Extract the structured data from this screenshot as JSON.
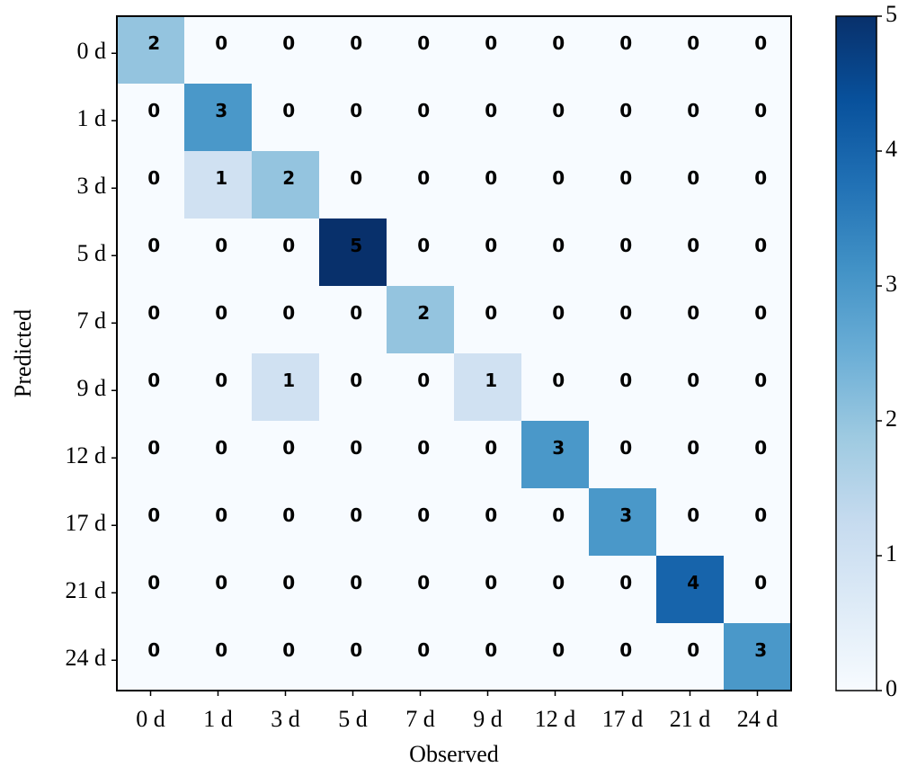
{
  "chart_data": {
    "type": "heatmap",
    "x_label": "Observed",
    "y_label": "Predicted",
    "x_categories": [
      "0 d",
      "1 d",
      "3 d",
      "5 d",
      "7 d",
      "9 d",
      "12 d",
      "17 d",
      "21 d",
      "24 d"
    ],
    "y_categories": [
      "0 d",
      "1 d",
      "3 d",
      "5 d",
      "7 d",
      "9 d",
      "12 d",
      "17 d",
      "21 d",
      "24 d"
    ],
    "values": [
      [
        2,
        0,
        0,
        0,
        0,
        0,
        0,
        0,
        0,
        0
      ],
      [
        0,
        3,
        0,
        0,
        0,
        0,
        0,
        0,
        0,
        0
      ],
      [
        0,
        1,
        2,
        0,
        0,
        0,
        0,
        0,
        0,
        0
      ],
      [
        0,
        0,
        0,
        5,
        0,
        0,
        0,
        0,
        0,
        0
      ],
      [
        0,
        0,
        0,
        0,
        2,
        0,
        0,
        0,
        0,
        0
      ],
      [
        0,
        0,
        1,
        0,
        0,
        1,
        0,
        0,
        0,
        0
      ],
      [
        0,
        0,
        0,
        0,
        0,
        0,
        3,
        0,
        0,
        0
      ],
      [
        0,
        0,
        0,
        0,
        0,
        0,
        0,
        3,
        0,
        0
      ],
      [
        0,
        0,
        0,
        0,
        0,
        0,
        0,
        0,
        4,
        0
      ],
      [
        0,
        0,
        0,
        0,
        0,
        0,
        0,
        0,
        0,
        3
      ]
    ],
    "colormap": "Blues",
    "zlim": [
      0,
      5
    ],
    "colorbar_ticks": [
      0,
      1,
      2,
      3,
      4,
      5
    ]
  }
}
